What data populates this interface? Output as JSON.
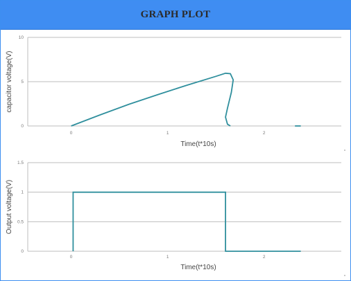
{
  "window": {
    "title": "GRAPH PLOT"
  },
  "colors": {
    "header": "#3f8df2",
    "border": "#3d8ef0",
    "series": "#2f8f9d",
    "grid": "#bdbdbd"
  },
  "chart_data": [
    {
      "type": "line",
      "xlabel": "Time(t*10s)",
      "ylabel": "capacitor voltage(V)",
      "xlim": [
        -0.45,
        2.8
      ],
      "ylim": [
        0,
        10
      ],
      "xticks": [
        "0",
        "1",
        "2"
      ],
      "yticks": [
        "0",
        "5",
        "10"
      ],
      "grid": true,
      "series": [
        {
          "points": [
            [
              0.0,
              0.0
            ],
            [
              0.3,
              1.25
            ],
            [
              0.6,
              2.45
            ],
            [
              0.9,
              3.55
            ],
            [
              1.2,
              4.6
            ],
            [
              1.5,
              5.6
            ],
            [
              1.6,
              5.95
            ],
            [
              1.65,
              5.9
            ],
            [
              1.68,
              5.2
            ],
            [
              1.66,
              3.8
            ],
            [
              1.62,
              2.0
            ],
            [
              1.6,
              1.0
            ],
            [
              1.62,
              0.2
            ],
            [
              1.65,
              0.0
            ]
          ]
        },
        {
          "points": [
            [
              2.32,
              0.0
            ],
            [
              2.38,
              0.0
            ]
          ]
        }
      ]
    },
    {
      "type": "line",
      "xlabel": "Time(t*10s)",
      "ylabel": "Output voltage(V)",
      "xlim": [
        -0.45,
        2.8
      ],
      "ylim": [
        0,
        1.5
      ],
      "xticks": [
        "0",
        "1",
        "2"
      ],
      "yticks": [
        "0",
        "0.5",
        "1",
        "1.5"
      ],
      "grid": true,
      "series": [
        {
          "points": [
            [
              0.02,
              0
            ],
            [
              0.02,
              1
            ],
            [
              1.6,
              1
            ],
            [
              1.6,
              0
            ],
            [
              2.38,
              0
            ]
          ]
        }
      ]
    }
  ]
}
